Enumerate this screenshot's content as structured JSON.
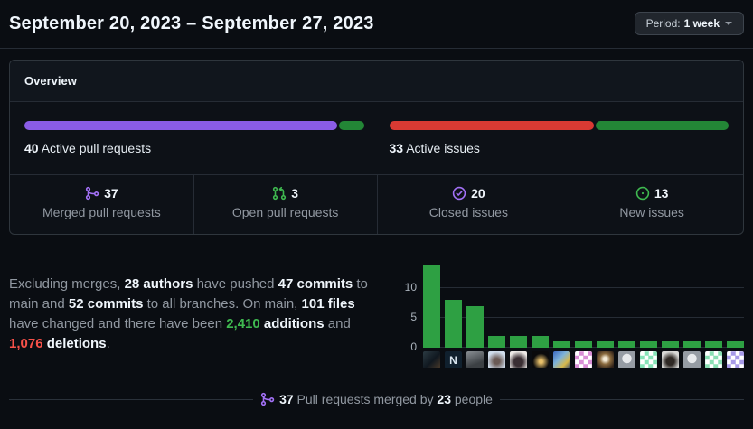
{
  "header": {
    "title": "September 20, 2023 – September 27, 2023",
    "period": {
      "label": "Period:",
      "value": "1 week"
    }
  },
  "overview": {
    "title": "Overview",
    "pull_requests": {
      "count": "40",
      "label": " Active pull requests",
      "segments": [
        {
          "name": "merged-pull-requests-segment",
          "pct": 92.5,
          "color": "#8a5ce6"
        },
        {
          "name": "open-pull-requests-segment",
          "pct": 7.5,
          "color": "#238636"
        }
      ]
    },
    "issues": {
      "count": "33",
      "label": " Active issues",
      "segments": [
        {
          "name": "closed-issues-segment",
          "pct": 60.6,
          "color": "#d93a33"
        },
        {
          "name": "new-issues-segment",
          "pct": 39.4,
          "color": "#238636"
        }
      ]
    },
    "stats": [
      {
        "value": "37",
        "label": "Merged pull requests",
        "icon": "git-merge-icon",
        "icon_color": "#a371f7"
      },
      {
        "value": "3",
        "label": "Open pull requests",
        "icon": "git-pull-request-icon",
        "icon_color": "#3fb950"
      },
      {
        "value": "20",
        "label": "Closed issues",
        "icon": "issue-closed-icon",
        "icon_color": "#a371f7"
      },
      {
        "value": "13",
        "label": "New issues",
        "icon": "issue-opened-icon",
        "icon_color": "#3fb950"
      }
    ]
  },
  "summary": {
    "segments": [
      {
        "t": "Excluding merges, ",
        "s": "m"
      },
      {
        "t": "28 authors",
        "s": "b"
      },
      {
        "t": " have pushed ",
        "s": "m"
      },
      {
        "t": "47 commits",
        "s": "b"
      },
      {
        "t": " to main and ",
        "s": "m"
      },
      {
        "t": "52 commits",
        "s": "b"
      },
      {
        "t": " to all branches. On main, ",
        "s": "m"
      },
      {
        "t": "101 files",
        "s": "b"
      },
      {
        "t": " have changed and there have been ",
        "s": "m"
      },
      {
        "t": "2,410",
        "s": "g"
      },
      {
        "t": " additions",
        "s": "b"
      },
      {
        "t": " and ",
        "s": "m"
      },
      {
        "t": "1,076",
        "s": "r"
      },
      {
        "t": " deletions",
        "s": "b"
      },
      {
        "t": ".",
        "s": "m"
      }
    ]
  },
  "chart_data": {
    "type": "bar",
    "description": "Commits per contributor during the period, one bar per author avatar",
    "values": [
      14,
      8,
      7,
      2,
      2,
      2,
      1,
      1,
      1,
      1,
      1,
      1,
      1,
      1,
      1
    ],
    "yticks": [
      0,
      5,
      10
    ],
    "ylim": [
      0,
      15
    ],
    "grid": true,
    "bar_color": "#2ea043",
    "avatars": [
      {
        "desc": "photo-person-dark",
        "bg": "linear-gradient(135deg,#2b3a42 0%,#101820 55%,#4a3a2a 100%)"
      },
      {
        "desc": "letter-n-logo",
        "bg": "#10202e",
        "glyph": "N",
        "glyph_color": "#d8e4ee"
      },
      {
        "desc": "photo-grayscale-person",
        "bg": "linear-gradient(160deg,#8a8f94,#3c4044 70%)"
      },
      {
        "desc": "photo-hooded-person",
        "bg": "radial-gradient(circle at 50% 58%,#6b5a55 22%,#cfdceb 72%)"
      },
      {
        "desc": "photo-woman-dark-hair",
        "bg": "radial-gradient(circle at 50% 62%,#3a2e33 32%,#ece8e6 76%)"
      },
      {
        "desc": "photo-night-light",
        "bg": "radial-gradient(circle at 55% 60%,#e8c06a 12%,#0a0a0c 58%)"
      },
      {
        "desc": "photo-colorful-person",
        "bg": "linear-gradient(135deg,#3a67c0,#7fb3d8 40%,#d8b94a 72%,#28406e)"
      },
      {
        "desc": "identicon-orchid",
        "bg": "repeating-conic-gradient(#d98ed6 0% 25%,#ffffff 0% 50%) 50% / 9.5px 9.5px"
      },
      {
        "desc": "photo-glowing-figure",
        "bg": "radial-gradient(circle at 50% 45%,#f5ecd8 14%,#8a6a3e 42%,#2e2018 82%)"
      },
      {
        "desc": "default-octocat",
        "bg": "radial-gradient(circle at 50% 42%,#e7e9ec 35%,#969ca4 37%)"
      },
      {
        "desc": "identicon-mint",
        "bg": "repeating-conic-gradient(#86e3b8 0% 25%,#ffffff 0% 50%) 50% / 9.5px 9.5px"
      },
      {
        "desc": "photo-woman-white-top",
        "bg": "radial-gradient(circle at 50% 58%,#2e2824 30%,#d8d8d6 72%)"
      },
      {
        "desc": "default-octocat",
        "bg": "radial-gradient(circle at 50% 42%,#e7e9ec 35%,#969ca4 37%)"
      },
      {
        "desc": "identicon-mint",
        "bg": "repeating-conic-gradient(#8ae0b4 0% 25%,#ffffff 0% 50%) 50% / 9.5px 9.5px"
      },
      {
        "desc": "identicon-purple",
        "bg": "repeating-conic-gradient(#a79ae8 0% 25%,#ffffff 0% 50%) 50% / 9.5px 9.5px"
      }
    ]
  },
  "footer": {
    "merged_count": "37",
    "text": " Pull requests merged by ",
    "people_count": "23",
    "people_label": " people"
  }
}
